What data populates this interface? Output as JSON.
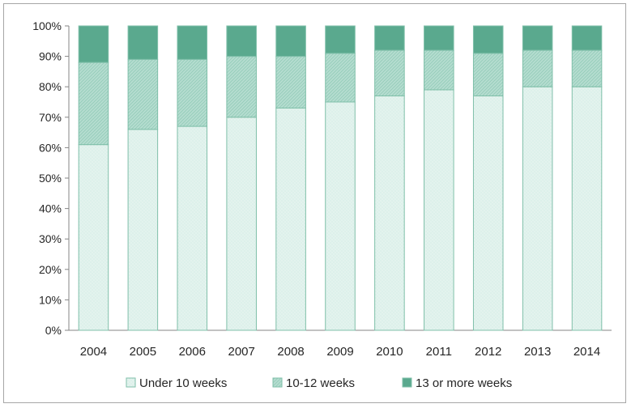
{
  "chart_data": {
    "type": "bar",
    "stacked": true,
    "percent_stacked": true,
    "categories": [
      "2004",
      "2005",
      "2006",
      "2007",
      "2008",
      "2009",
      "2010",
      "2011",
      "2012",
      "2013",
      "2014"
    ],
    "series": [
      {
        "name": "Under 10 weeks",
        "values": [
          61,
          66,
          67,
          70,
          73,
          75,
          77,
          79,
          77,
          80,
          80
        ],
        "color": "#e3f3ee",
        "pattern": "dotted-light"
      },
      {
        "name": "10-12 weeks",
        "values": [
          27,
          23,
          22,
          20,
          17,
          16,
          15,
          13,
          14,
          12,
          12
        ],
        "color": "#b5ddd0",
        "pattern": "hatched-medium"
      },
      {
        "name": "13 or more weeks",
        "values": [
          12,
          11,
          11,
          10,
          10,
          9,
          8,
          8,
          9,
          8,
          8
        ],
        "color": "#5aa98e",
        "pattern": "solid-dark"
      }
    ],
    "yticks": [
      "0%",
      "10%",
      "20%",
      "30%",
      "40%",
      "50%",
      "60%",
      "70%",
      "80%",
      "90%",
      "100%"
    ],
    "ylim": [
      0,
      100
    ],
    "grid": false,
    "legend_position": "bottom",
    "bar_stroke_color": "#7fbfa9"
  }
}
